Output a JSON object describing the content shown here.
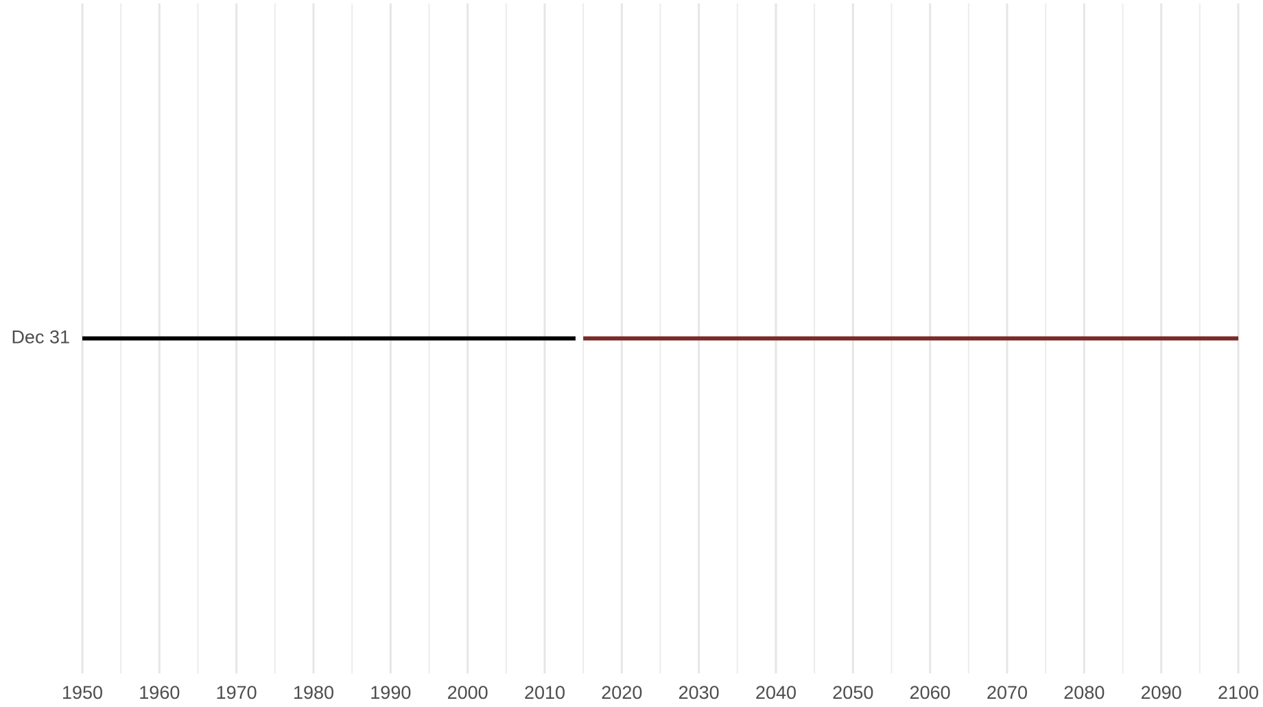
{
  "chart_data": {
    "type": "timeline",
    "y_categories": [
      "Dec 31"
    ],
    "series": [
      {
        "color": "#000000",
        "start": 1950,
        "end": 2014
      },
      {
        "color": "#7b2a26",
        "start": 2015,
        "end": 2100
      }
    ],
    "xlim": [
      1950,
      2100
    ],
    "xticks": [
      1950,
      1960,
      1970,
      1980,
      1990,
      2000,
      2010,
      2020,
      2030,
      2040,
      2050,
      2060,
      2070,
      2080,
      2090,
      2100
    ],
    "xminor": [
      1955,
      1965,
      1975,
      1985,
      1995,
      2005,
      2015,
      2025,
      2035,
      2045,
      2055,
      2065,
      2075,
      2085,
      2095
    ],
    "grid": true
  }
}
